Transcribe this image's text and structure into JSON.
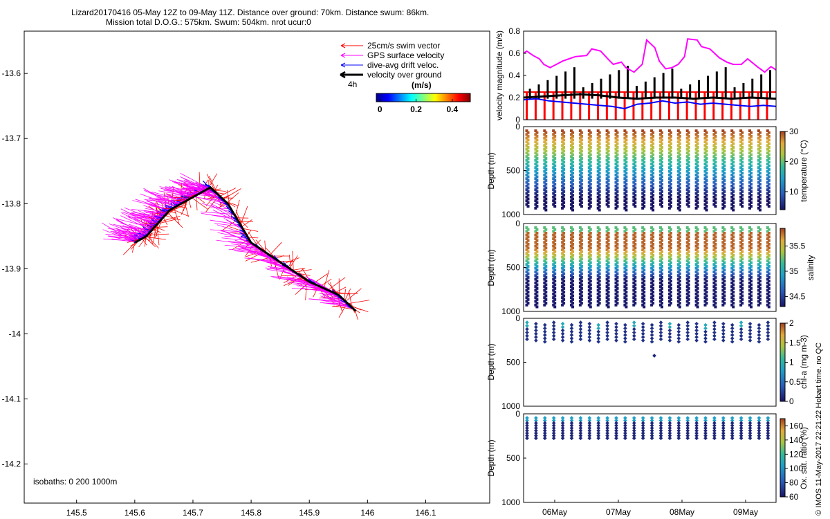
{
  "header": {
    "line1": "Lizard20170416 05-May 12Z to 09-May 11Z. Distance over ground: 70km. Distance swum: 86km.",
    "line2": "Mission total D.O.G.: 575km. Swum: 504km. nrot ucur:0"
  },
  "watermark": "© IMOS 11-May-2017 22:21:22 Hobart time. no QC",
  "colors": {
    "swim": "#ff0000",
    "gps": "#ff00ff",
    "drift": "#0000ff",
    "dog": "#000000"
  },
  "chart_data": [
    {
      "id": "map",
      "type": "scatter",
      "xticks": [
        "145.5",
        "145.6",
        "145.7",
        "145.8",
        "145.9",
        "146",
        "146.1"
      ],
      "yticks": [
        "-13.6",
        "-13.7",
        "-13.8",
        "-13.9",
        "-14",
        "-14.1",
        "-14.2"
      ],
      "xlim": [
        145.41,
        146.21
      ],
      "ylim": [
        -14.26,
        -13.535
      ],
      "legend": [
        "25cm/s swim vector",
        "GPS surface velocity",
        "dive-avg drift veloc.",
        "velocity over ground"
      ],
      "legend_scale_label": "4h",
      "colorbar_label": "(m/s)",
      "colorbar_ticks": [
        "0",
        "0.2",
        "0.4"
      ],
      "colorbar_range": [
        -0.02,
        0.5
      ],
      "isobaths_label": "isobaths: 0   200  1000m",
      "track": [
        [
          145.6,
          -13.86
        ],
        [
          145.62,
          -13.85
        ],
        [
          145.64,
          -13.83
        ],
        [
          145.66,
          -13.81
        ],
        [
          145.7,
          -13.79
        ],
        [
          145.73,
          -13.775
        ],
        [
          145.76,
          -13.8
        ],
        [
          145.8,
          -13.86
        ],
        [
          145.85,
          -13.89
        ],
        [
          145.9,
          -13.92
        ],
        [
          145.95,
          -13.94
        ],
        [
          145.98,
          -13.965
        ]
      ]
    },
    {
      "id": "velocity",
      "type": "line",
      "ylabel": "velocity magnitude (m/s)",
      "yticks": [
        "0",
        "0.2",
        "0.4",
        "0.6",
        "0.8"
      ],
      "ylim": [
        0,
        0.8
      ],
      "xlim_days": [
        5.5,
        9.5
      ],
      "gps_surface": [
        [
          5.5,
          0.6
        ],
        [
          5.55,
          0.62
        ],
        [
          5.65,
          0.58
        ],
        [
          5.75,
          0.55
        ],
        [
          5.82,
          0.5
        ],
        [
          5.92,
          0.47
        ],
        [
          6.02,
          0.5
        ],
        [
          6.12,
          0.53
        ],
        [
          6.22,
          0.55
        ],
        [
          6.32,
          0.57
        ],
        [
          6.5,
          0.58
        ],
        [
          6.58,
          0.64
        ],
        [
          6.72,
          0.62
        ],
        [
          6.85,
          0.54
        ],
        [
          6.92,
          0.5
        ],
        [
          7.05,
          0.52
        ],
        [
          7.12,
          0.47
        ],
        [
          7.25,
          0.43
        ],
        [
          7.38,
          0.5
        ],
        [
          7.45,
          0.72
        ],
        [
          7.58,
          0.65
        ],
        [
          7.65,
          0.53
        ],
        [
          7.75,
          0.46
        ],
        [
          7.85,
          0.47
        ],
        [
          7.95,
          0.5
        ],
        [
          8.05,
          0.57
        ],
        [
          8.1,
          0.73
        ],
        [
          8.25,
          0.72
        ],
        [
          8.32,
          0.66
        ],
        [
          8.45,
          0.64
        ],
        [
          8.6,
          0.56
        ],
        [
          8.72,
          0.52
        ],
        [
          8.82,
          0.5
        ],
        [
          8.95,
          0.5
        ],
        [
          9.05,
          0.55
        ],
        [
          9.2,
          0.48
        ],
        [
          9.32,
          0.43
        ],
        [
          9.42,
          0.48
        ],
        [
          9.5,
          0.45
        ]
      ],
      "drift_avg": [
        [
          5.5,
          0.18
        ],
        [
          5.7,
          0.19
        ],
        [
          5.9,
          0.17
        ],
        [
          6.1,
          0.16
        ],
        [
          6.3,
          0.15
        ],
        [
          6.5,
          0.14
        ],
        [
          6.7,
          0.13
        ],
        [
          6.9,
          0.12
        ],
        [
          7.1,
          0.1
        ],
        [
          7.3,
          0.14
        ],
        [
          7.5,
          0.15
        ],
        [
          7.7,
          0.17
        ],
        [
          7.9,
          0.15
        ],
        [
          8.1,
          0.16
        ],
        [
          8.3,
          0.14
        ],
        [
          8.5,
          0.15
        ],
        [
          8.7,
          0.14
        ],
        [
          8.9,
          0.13
        ],
        [
          9.1,
          0.12
        ],
        [
          9.3,
          0.13
        ],
        [
          9.5,
          0.12
        ]
      ],
      "over_ground": [
        [
          5.5,
          0.2
        ],
        [
          5.8,
          0.21
        ],
        [
          6.1,
          0.22
        ],
        [
          6.4,
          0.23
        ],
        [
          6.7,
          0.22
        ],
        [
          7.0,
          0.2
        ],
        [
          7.3,
          0.19
        ],
        [
          7.6,
          0.2
        ],
        [
          7.9,
          0.2
        ],
        [
          8.2,
          0.19
        ],
        [
          8.5,
          0.2
        ],
        [
          8.8,
          0.19
        ],
        [
          9.1,
          0.2
        ],
        [
          9.5,
          0.19
        ]
      ],
      "swim_level": 0.25
    },
    {
      "id": "temperature",
      "type": "scatter",
      "ylabel": "Depth (m)",
      "yticks": [
        "0",
        "500",
        "1000"
      ],
      "ylim": [
        0,
        1000
      ],
      "colorbar_label": "temperature (°C)",
      "colorbar_ticks": [
        "10",
        "20",
        "30"
      ],
      "colorbar_range": [
        4,
        30
      ]
    },
    {
      "id": "salinity",
      "type": "scatter",
      "ylabel": "Depth (m)",
      "yticks": [
        "0",
        "500",
        "1000"
      ],
      "ylim": [
        0,
        1000
      ],
      "colorbar_label": "salinity",
      "colorbar_ticks": [
        "34.5",
        "35",
        "35.5"
      ],
      "colorbar_range": [
        34.3,
        35.85
      ]
    },
    {
      "id": "chla",
      "type": "scatter",
      "ylabel": "Depth (m)",
      "yticks": [
        "0",
        "500",
        "1000"
      ],
      "ylim": [
        0,
        1000
      ],
      "colorbar_label": "chl-a (mg m-3)",
      "colorbar_ticks": [
        "0",
        "0.5",
        "1",
        "1.5",
        "2"
      ],
      "colorbar_range": [
        0,
        2
      ]
    },
    {
      "id": "oxygen",
      "type": "scatter",
      "ylabel": "Depth (m)",
      "yticks": [
        "0",
        "500",
        "1000"
      ],
      "ylim": [
        0,
        1000
      ],
      "xticks": [
        "06May",
        "07May",
        "08May",
        "09May"
      ],
      "colorbar_label": "Ox. sat. ratio (%)",
      "colorbar_ticks": [
        "60",
        "80",
        "100",
        "120",
        "140",
        "160"
      ],
      "colorbar_range": [
        60,
        170
      ]
    }
  ]
}
